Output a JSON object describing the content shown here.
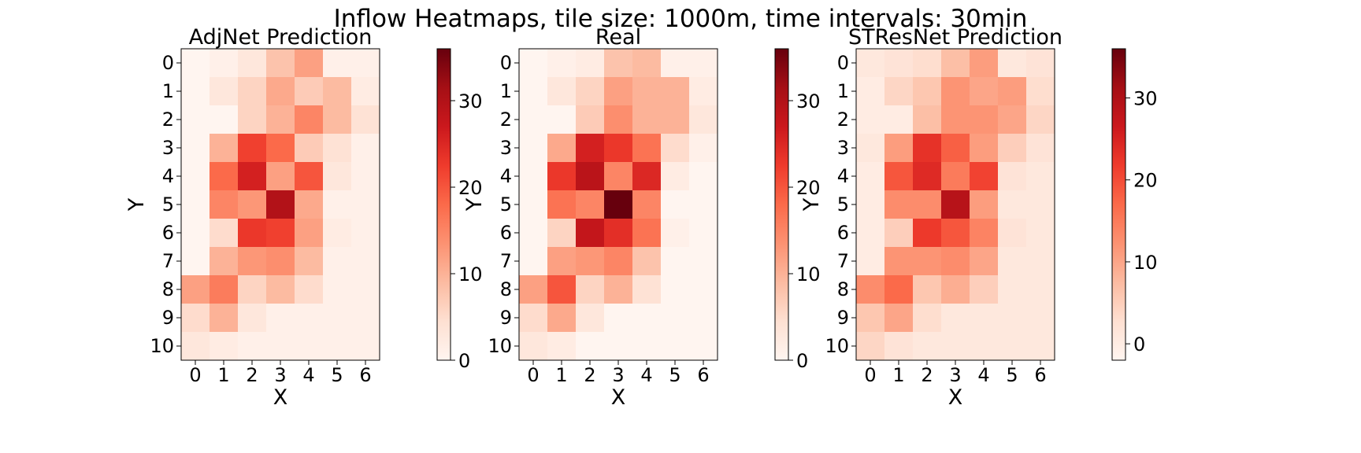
{
  "figure": {
    "title": "Inflow Heatmaps, tile size: 1000m, time intervals: 30min"
  },
  "chart_data": [
    {
      "type": "heatmap",
      "title": "AdjNet Prediction",
      "xlabel": "X",
      "ylabel": "Y",
      "x_ticks": [
        "0",
        "1",
        "2",
        "3",
        "4",
        "5",
        "6"
      ],
      "y_ticks": [
        "0",
        "1",
        "2",
        "3",
        "4",
        "5",
        "6",
        "7",
        "8",
        "9",
        "10"
      ],
      "colormap": "Reds",
      "vmin": 0,
      "vmax": 36,
      "colorbar_ticks": [
        0,
        10,
        20,
        30
      ],
      "values": [
        [
          0,
          1,
          3,
          8,
          12,
          1,
          1
        ],
        [
          0,
          3,
          6,
          11,
          7,
          9,
          2
        ],
        [
          0,
          0,
          6,
          10,
          15,
          9,
          4
        ],
        [
          0,
          10,
          22,
          18,
          7,
          4,
          1
        ],
        [
          0,
          18,
          26,
          12,
          20,
          3,
          1
        ],
        [
          0,
          15,
          13,
          30,
          11,
          1,
          1
        ],
        [
          0,
          5,
          23,
          22,
          12,
          2,
          1
        ],
        [
          0,
          10,
          13,
          14,
          9,
          1,
          1
        ],
        [
          12,
          16,
          6,
          9,
          5,
          1,
          1
        ],
        [
          5,
          10,
          3,
          1,
          1,
          1,
          1
        ],
        [
          3,
          2,
          1,
          1,
          1,
          1,
          1
        ]
      ]
    },
    {
      "type": "heatmap",
      "title": "Real",
      "xlabel": "X",
      "ylabel": "Y",
      "x_ticks": [
        "0",
        "1",
        "2",
        "3",
        "4",
        "5",
        "6"
      ],
      "y_ticks": [
        "0",
        "1",
        "2",
        "3",
        "4",
        "5",
        "6",
        "7",
        "8",
        "9",
        "10"
      ],
      "colormap": "Reds",
      "vmin": 0,
      "vmax": 36,
      "colorbar_ticks": [
        0,
        10,
        20,
        30
      ],
      "values": [
        [
          0,
          1,
          2,
          8,
          9,
          1,
          1
        ],
        [
          0,
          3,
          6,
          12,
          10,
          10,
          2
        ],
        [
          0,
          0,
          7,
          14,
          10,
          10,
          3
        ],
        [
          0,
          11,
          26,
          23,
          17,
          5,
          1
        ],
        [
          0,
          23,
          29,
          15,
          25,
          2,
          0
        ],
        [
          0,
          17,
          15,
          36,
          15,
          0,
          0
        ],
        [
          0,
          6,
          28,
          24,
          17,
          1,
          0
        ],
        [
          0,
          12,
          13,
          15,
          8,
          0,
          0
        ],
        [
          12,
          20,
          6,
          10,
          4,
          0,
          0
        ],
        [
          5,
          11,
          3,
          0,
          0,
          0,
          0
        ],
        [
          3,
          2,
          0,
          0,
          0,
          0,
          0
        ]
      ]
    },
    {
      "type": "heatmap",
      "title": "STResNet Prediction",
      "xlabel": "X",
      "ylabel": "Y",
      "x_ticks": [
        "0",
        "1",
        "2",
        "3",
        "4",
        "5",
        "6"
      ],
      "y_ticks": [
        "0",
        "1",
        "2",
        "3",
        "4",
        "5",
        "6",
        "7",
        "8",
        "9",
        "10"
      ],
      "colormap": "Reds",
      "vmin": -2,
      "vmax": 36,
      "colorbar_ticks": [
        0,
        10,
        20,
        30
      ],
      "values": [
        [
          1,
          2,
          3,
          7,
          11,
          1,
          2
        ],
        [
          0,
          4,
          6,
          12,
          10,
          11,
          3
        ],
        [
          0,
          0,
          7,
          12,
          12,
          10,
          4
        ],
        [
          1,
          11,
          23,
          18,
          11,
          5,
          2
        ],
        [
          0,
          19,
          24,
          15,
          21,
          2,
          1
        ],
        [
          0,
          13,
          13,
          29,
          11,
          1,
          1
        ],
        [
          0,
          5,
          22,
          19,
          14,
          2,
          1
        ],
        [
          0,
          12,
          12,
          13,
          10,
          1,
          1
        ],
        [
          13,
          17,
          6,
          9,
          5,
          1,
          1
        ],
        [
          6,
          10,
          3,
          1,
          1,
          1,
          1
        ],
        [
          4,
          2,
          1,
          1,
          1,
          1,
          1
        ]
      ]
    }
  ]
}
